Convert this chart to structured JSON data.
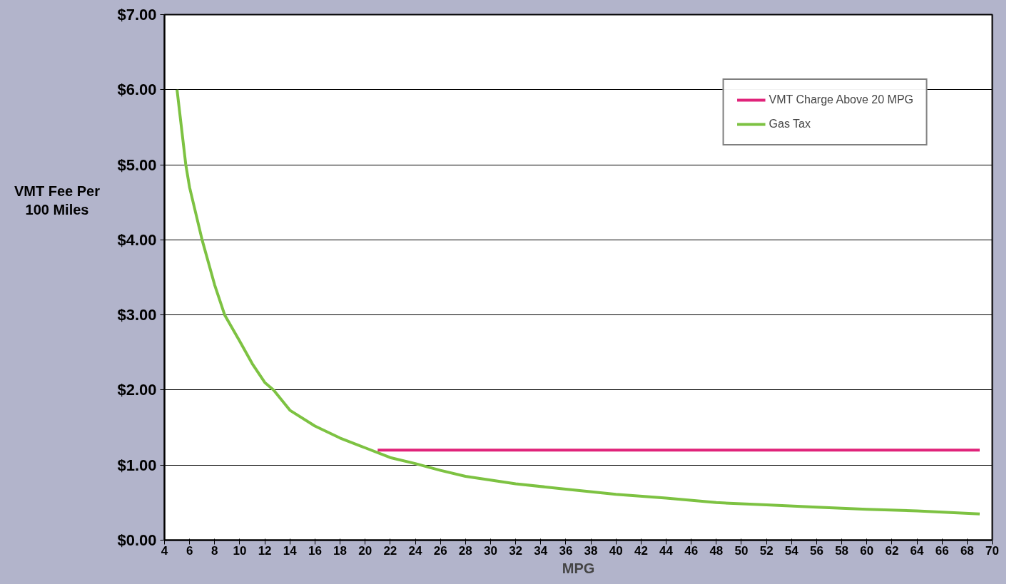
{
  "chart_data": {
    "type": "line",
    "xlabel": "MPG",
    "ylabel": "VMT Fee Per 100 Miles",
    "xlim": [
      4,
      70
    ],
    "xticks": [
      4,
      6,
      8,
      10,
      12,
      14,
      16,
      18,
      20,
      22,
      24,
      26,
      28,
      30,
      32,
      34,
      36,
      38,
      40,
      42,
      44,
      46,
      48,
      50,
      52,
      54,
      56,
      58,
      60,
      62,
      64,
      66,
      68,
      70
    ],
    "ylim": [
      0,
      7
    ],
    "yticks": [
      {
        "value": 0,
        "label": "$0.00"
      },
      {
        "value": 1,
        "label": "$1.00"
      },
      {
        "value": 2,
        "label": "$2.00"
      },
      {
        "value": 3,
        "label": "$3.00"
      },
      {
        "value": 4,
        "label": "$4.00"
      },
      {
        "value": 5,
        "label": "$5.00"
      },
      {
        "value": 6,
        "label": "$6.00"
      },
      {
        "value": 7,
        "label": "$7.00"
      }
    ],
    "grid": "y",
    "legend": "top right",
    "marker": "none",
    "line_style": "solid",
    "series": [
      {
        "name": "VMT Charge Above 20 MPG",
        "color": "#e0237a",
        "x": [
          21,
          69
        ],
        "values": [
          1.2,
          1.2
        ]
      },
      {
        "name": "Gas Tax",
        "color": "#7dc242",
        "x": [
          5,
          5.7,
          6,
          7,
          8,
          8.8,
          10,
          11,
          12,
          12.7,
          14,
          16,
          18,
          20,
          22,
          24,
          26,
          28,
          32,
          36,
          40,
          44,
          48,
          52,
          56,
          60,
          64,
          69
        ],
        "values": [
          6.0,
          5.0,
          4.7,
          4.0,
          3.4,
          3.0,
          2.65,
          2.35,
          2.1,
          2.0,
          1.73,
          1.52,
          1.36,
          1.23,
          1.1,
          1.02,
          0.93,
          0.85,
          0.75,
          0.68,
          0.61,
          0.56,
          0.5,
          0.47,
          0.44,
          0.41,
          0.39,
          0.35
        ]
      }
    ]
  }
}
